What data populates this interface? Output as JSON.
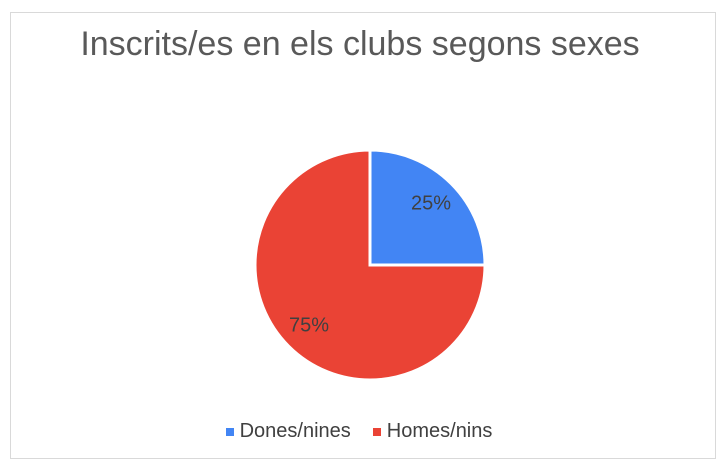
{
  "chart_data": {
    "type": "pie",
    "title": "Inscrits/es en els clubs segons sexes",
    "categories": [
      "Dones/nines",
      "Homes/nins"
    ],
    "values": [
      25,
      75
    ],
    "value_labels": [
      "25%",
      "75%"
    ],
    "colors": [
      "#4285f4",
      "#ea4335"
    ],
    "legend": "bottom"
  }
}
